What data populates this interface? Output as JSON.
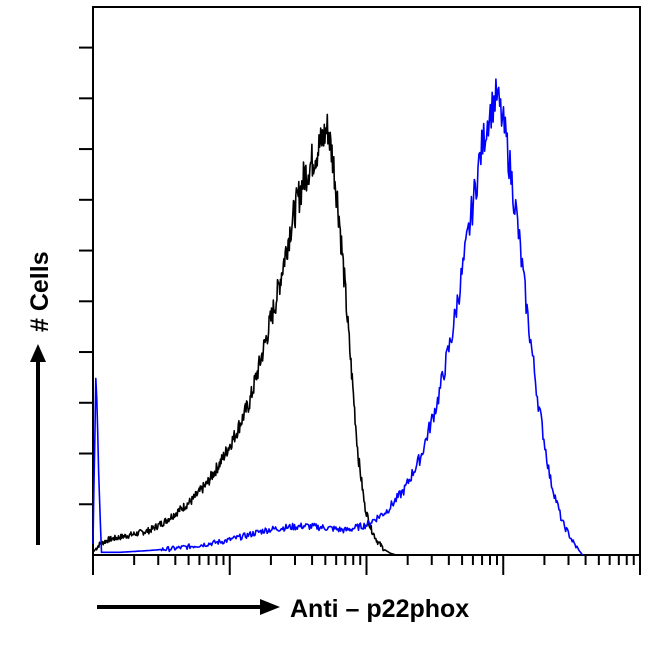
{
  "chart_data": {
    "type": "line",
    "title": "",
    "xlabel": "Anti – p22phox",
    "ylabel": "# Cells",
    "x_scale": "log",
    "xlim": [
      1,
      10000
    ],
    "ylim": [
      0,
      100
    ],
    "grid": false,
    "legend": "none",
    "series": [
      {
        "color": "#000000",
        "x": [
          1.0,
          1.12,
          1.3,
          1.6,
          2.0,
          2.6,
          3.3,
          4.2,
          5.3,
          6.8,
          8.6,
          11,
          14,
          17,
          22,
          28,
          35,
          45,
          52,
          57,
          63,
          70,
          78,
          87,
          97,
          107,
          120,
          135,
          150,
          165,
          180
        ],
        "y": [
          0.5,
          2.0,
          2.8,
          3.3,
          3.8,
          4.5,
          6.0,
          8.0,
          10.0,
          13.0,
          17.0,
          22.0,
          28.0,
          36.0,
          47.0,
          60.0,
          69.0,
          74.5,
          78.0,
          72.0,
          62.0,
          48.0,
          33.0,
          18.0,
          9.0,
          5.0,
          2.5,
          1.0,
          0.3,
          0.0,
          0.0
        ]
      },
      {
        "color": "#0000ff",
        "x": [
          1.0,
          1.05,
          1.15,
          1.6,
          2.5,
          4.0,
          6.0,
          9.0,
          13,
          18,
          25,
          35,
          50,
          70,
          100,
          140,
          190,
          250,
          330,
          420,
          520,
          600,
          680,
          780,
          900,
          1050,
          1250,
          1500,
          1800,
          2200,
          2700,
          3300,
          3800
        ],
        "y": [
          2.0,
          32.0,
          0.5,
          0.5,
          0.8,
          1.2,
          1.8,
          2.5,
          3.5,
          4.5,
          5.0,
          5.3,
          5.0,
          4.5,
          5.5,
          8.0,
          12.0,
          18.0,
          28.0,
          40.0,
          54.0,
          64.0,
          73.0,
          80.0,
          84.0,
          76.0,
          62.0,
          44.0,
          28.0,
          14.0,
          6.0,
          2.0,
          0.0
        ]
      }
    ]
  }
}
